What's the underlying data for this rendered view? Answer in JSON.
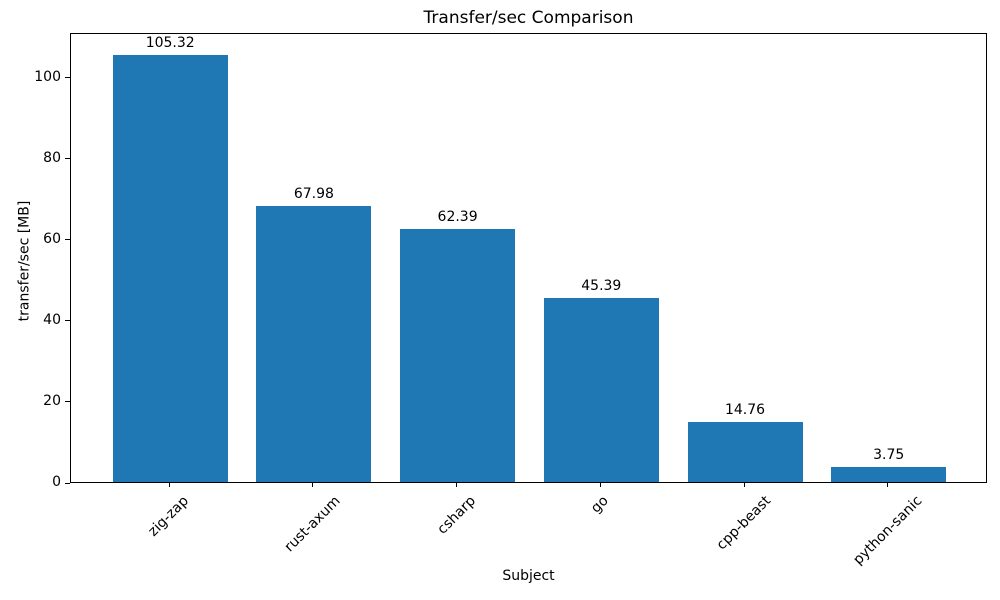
{
  "chart_data": {
    "type": "bar",
    "title": "Transfer/sec Comparison",
    "xlabel": "Subject",
    "ylabel": "transfer/sec [MB]",
    "categories": [
      "zig-zap",
      "rust-axum",
      "csharp",
      "go",
      "cpp-beast",
      "python-sanic"
    ],
    "values": [
      105.32,
      67.98,
      62.39,
      45.39,
      14.76,
      3.75
    ],
    "value_labels": [
      "105.32",
      "67.98",
      "62.39",
      "45.39",
      "14.76",
      "3.75"
    ],
    "bar_color": "#1f77b4",
    "text_color": "#000000",
    "background_color": "#ffffff",
    "ylim": [
      0,
      111
    ],
    "yticks": [
      0,
      20,
      40,
      60,
      80,
      100
    ],
    "x_tick_rotation": 45,
    "grid": false,
    "legend": "none"
  }
}
